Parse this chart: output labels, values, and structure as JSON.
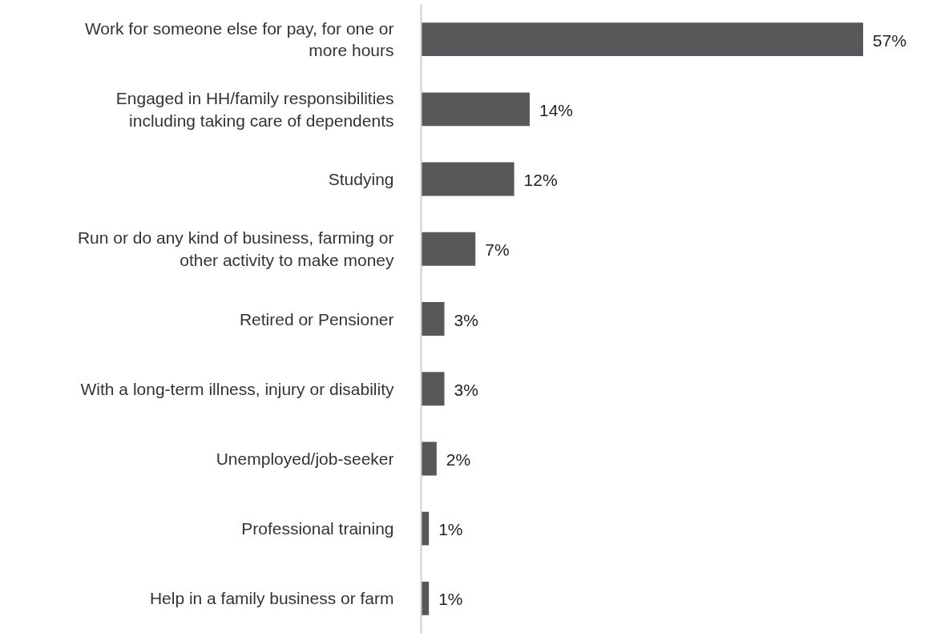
{
  "chart_data": {
    "type": "bar",
    "orientation": "horizontal",
    "grid": false,
    "categories": [
      "Work for someone else for pay, for one or\nmore hours",
      "Engaged in HH/family responsibilities\nincluding taking care of dependents",
      "Studying",
      "Run or do any kind of business, farming or\nother activity to make money",
      "Retired or Pensioner",
      "With a long-term illness, injury or disability",
      "Unemployed/job-seeker",
      "Professional training",
      "Help in a family business or farm"
    ],
    "values": [
      57,
      14,
      12,
      7,
      3,
      3,
      2,
      1,
      1
    ],
    "value_labels": [
      "57%",
      "14%",
      "12%",
      "7%",
      "3%",
      "3%",
      "2%",
      "1%",
      "1%"
    ],
    "color": "#58585a"
  }
}
